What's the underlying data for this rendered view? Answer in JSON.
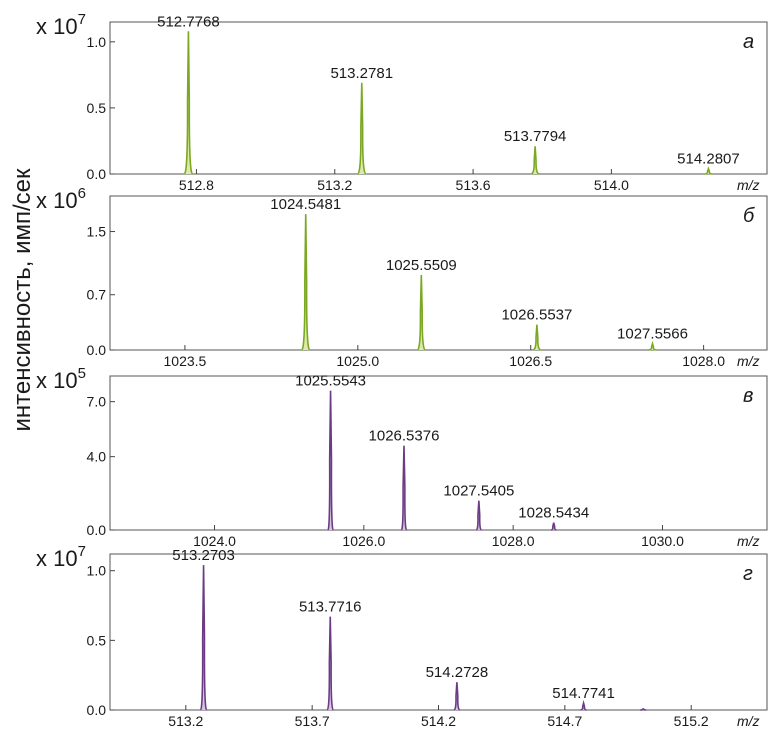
{
  "y_axis_label": "интенсивность, имп/сек",
  "chart_data": [
    {
      "type": "line",
      "panel_letter": "а",
      "xlabel": "m/z",
      "y_scale_prefix": "x 10",
      "y_scale_exponent": "7",
      "xlim": [
        512.55,
        514.45
      ],
      "ylim": [
        0,
        1.15
      ],
      "xticks": [
        512.8,
        513.2,
        513.6,
        514.0
      ],
      "xtick_labels": [
        "512.8",
        "513.2",
        "513.6",
        "514.0"
      ],
      "yticks": [
        0.0,
        0.5,
        1.0
      ],
      "ytick_labels": [
        "0.0",
        "0.5",
        "1.0"
      ],
      "peak_color": "#7aa822",
      "fill_color": "#dfeaa8",
      "peak_width": 0.012,
      "peaks": [
        {
          "x": 512.7768,
          "y": 1.08,
          "label": "512.7768"
        },
        {
          "x": 513.2781,
          "y": 0.69,
          "label": "513.2781"
        },
        {
          "x": 513.7794,
          "y": 0.21,
          "label": "513.7794"
        },
        {
          "x": 514.2807,
          "y": 0.04,
          "label": "514.2807"
        }
      ]
    },
    {
      "type": "line",
      "panel_letter": "б",
      "xlabel": "m/z",
      "y_scale_prefix": "x 10",
      "y_scale_exponent": "6",
      "xlim": [
        1022.85,
        1028.55
      ],
      "ylim": [
        0,
        1.95
      ],
      "xticks": [
        1023.5,
        1025.0,
        1026.5,
        1028.0
      ],
      "xtick_labels": [
        "1023.5",
        "1025.0",
        "1026.5",
        "1028.0"
      ],
      "yticks": [
        0.0,
        0.7,
        1.5
      ],
      "ytick_labels": [
        "0.0",
        "0.7",
        "1.5"
      ],
      "peak_color": "#7aa822",
      "fill_color": "#dfeaa8",
      "peak_width": 0.035,
      "peaks": [
        {
          "x": 1024.5481,
          "y": 1.72,
          "label": "1024.5481"
        },
        {
          "x": 1025.5509,
          "y": 0.95,
          "label": "1025.5509"
        },
        {
          "x": 1026.5537,
          "y": 0.32,
          "label": "1026.5537"
        },
        {
          "x": 1027.5566,
          "y": 0.08,
          "label": "1027.5566"
        }
      ]
    },
    {
      "type": "line",
      "panel_letter": "в",
      "xlabel": "m/z",
      "y_scale_prefix": "x 10",
      "y_scale_exponent": "5",
      "xlim": [
        1022.6,
        1031.4
      ],
      "ylim": [
        0,
        8.4
      ],
      "xticks": [
        1024.0,
        1026.0,
        1028.0,
        1030.0
      ],
      "xtick_labels": [
        "1024.0",
        "1026.0",
        "1028.0",
        "1030.0"
      ],
      "yticks": [
        0.0,
        4.0,
        7.0
      ],
      "ytick_labels": [
        "0.0",
        "4.0",
        "7.0"
      ],
      "peak_color": "#6b3c84",
      "fill_color": "#d9c6e4",
      "peak_width": 0.035,
      "peaks": [
        {
          "x": 1025.5543,
          "y": 7.6,
          "label": "1025.5543"
        },
        {
          "x": 1026.5376,
          "y": 4.6,
          "label": "1026.5376"
        },
        {
          "x": 1027.5405,
          "y": 1.6,
          "label": "1027.5405"
        },
        {
          "x": 1028.5434,
          "y": 0.4,
          "label": "1028.5434"
        }
      ]
    },
    {
      "type": "line",
      "panel_letter": "г",
      "xlabel": "m/z",
      "y_scale_prefix": "x 10",
      "y_scale_exponent": "7",
      "xlim": [
        512.9,
        515.5
      ],
      "ylim": [
        0,
        1.12
      ],
      "xticks": [
        513.2,
        513.7,
        514.2,
        514.7,
        515.2
      ],
      "xtick_labels": [
        "513.2",
        "513.7",
        "514.2",
        "514.7",
        "515.2"
      ],
      "yticks": [
        0.0,
        0.5,
        1.0
      ],
      "ytick_labels": [
        "0.0",
        "0.5",
        "1.0"
      ],
      "peak_color": "#6b3c84",
      "fill_color": "#d9c6e4",
      "peak_width": 0.012,
      "peaks": [
        {
          "x": 513.2703,
          "y": 1.04,
          "label": "513.2703"
        },
        {
          "x": 513.7716,
          "y": 0.67,
          "label": "513.7716"
        },
        {
          "x": 514.2728,
          "y": 0.2,
          "label": "514.2728"
        },
        {
          "x": 514.7741,
          "y": 0.05,
          "label": "514.7741"
        },
        {
          "x": 515.01,
          "y": 0.008,
          "label": ""
        }
      ]
    }
  ]
}
